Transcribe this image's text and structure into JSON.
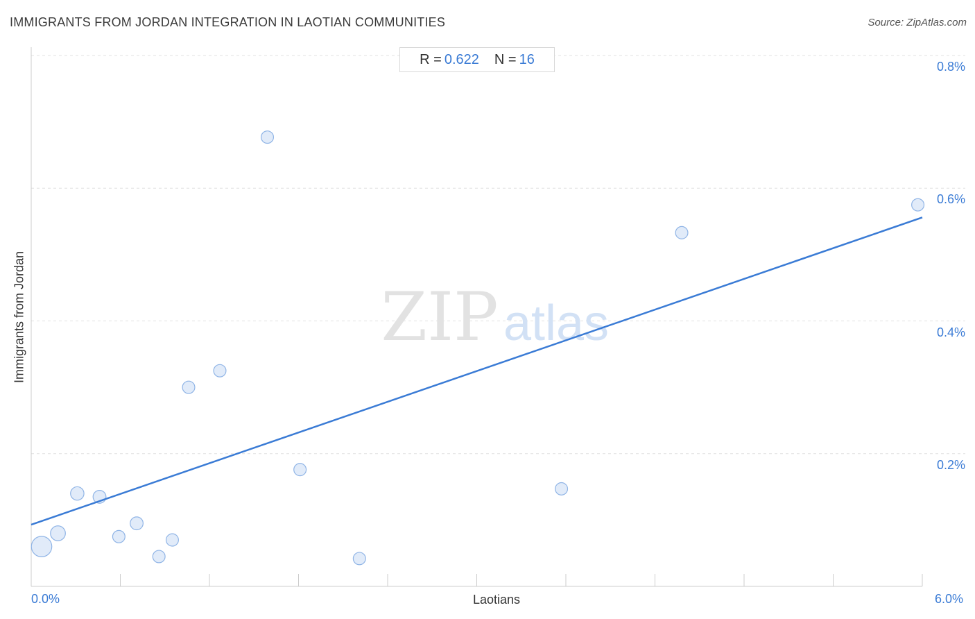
{
  "header": {
    "title": "IMMIGRANTS FROM JORDAN INTEGRATION IN LAOTIAN COMMUNITIES",
    "source": "Source: ZipAtlas.com"
  },
  "stats": {
    "r_label": "R =",
    "r_value": "0.622",
    "n_label": "N =",
    "n_value": "16"
  },
  "watermark": {
    "zip": "ZIP",
    "atlas": "atlas"
  },
  "colors": {
    "accent": "#3a7bd5",
    "point_fill": "#dce8f8",
    "point_stroke": "#8fb4e6",
    "grid": "#e0e0e0"
  },
  "chart_data": {
    "type": "scatter",
    "xlabel": "Laotians",
    "ylabel": "Immigrants from Jordan",
    "xlim": [
      0,
      6.0
    ],
    "ylim": [
      0,
      0.8
    ],
    "x_tick_labels": [
      "0.0%",
      "6.0%"
    ],
    "y_ticks": [
      0.2,
      0.4,
      0.6,
      0.8
    ],
    "y_tick_labels": [
      "0.2%",
      "0.4%",
      "0.6%",
      "0.8%"
    ],
    "grid": true,
    "points": [
      {
        "x": 0.07,
        "y": 0.06,
        "size": 3
      },
      {
        "x": 0.18,
        "y": 0.08,
        "size": 1.6
      },
      {
        "x": 0.31,
        "y": 0.14,
        "size": 1.3
      },
      {
        "x": 0.46,
        "y": 0.135,
        "size": 1.2
      },
      {
        "x": 0.59,
        "y": 0.075,
        "size": 1.1
      },
      {
        "x": 0.71,
        "y": 0.095,
        "size": 1.2
      },
      {
        "x": 0.86,
        "y": 0.045,
        "size": 1.1
      },
      {
        "x": 0.95,
        "y": 0.07,
        "size": 1.1
      },
      {
        "x": 1.06,
        "y": 0.3,
        "size": 1.1
      },
      {
        "x": 1.27,
        "y": 0.325,
        "size": 1.1
      },
      {
        "x": 1.59,
        "y": 0.677,
        "size": 1.1
      },
      {
        "x": 1.81,
        "y": 0.176,
        "size": 1.1
      },
      {
        "x": 2.21,
        "y": 0.042,
        "size": 1.1
      },
      {
        "x": 3.57,
        "y": 0.147,
        "size": 1.1
      },
      {
        "x": 4.38,
        "y": 0.533,
        "size": 1.1
      },
      {
        "x": 5.97,
        "y": 0.575,
        "size": 1.1
      }
    ],
    "trendline": {
      "x": [
        0,
        6.0
      ],
      "y": [
        0.093,
        0.556
      ]
    }
  }
}
